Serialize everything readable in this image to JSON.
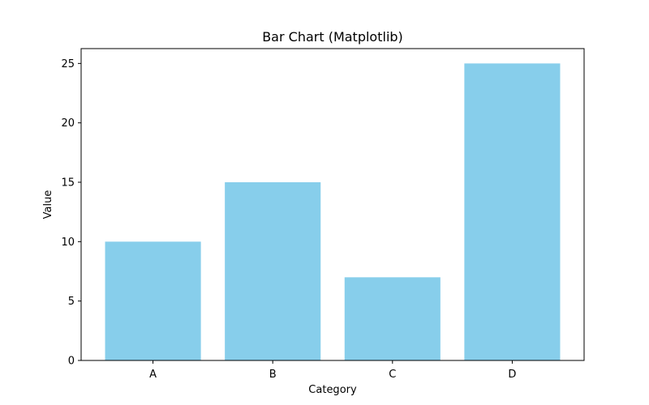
{
  "chart_data": {
    "type": "bar",
    "title": "Bar Chart (Matplotlib)",
    "xlabel": "Category",
    "ylabel": "Value",
    "categories": [
      "A",
      "B",
      "C",
      "D"
    ],
    "values": [
      10,
      15,
      7,
      25
    ],
    "ylim": [
      0,
      26.25
    ],
    "yticks": [
      0,
      5,
      10,
      15,
      20,
      25
    ],
    "bar_color": "#87CEEB",
    "grid": false,
    "legend": "none"
  }
}
